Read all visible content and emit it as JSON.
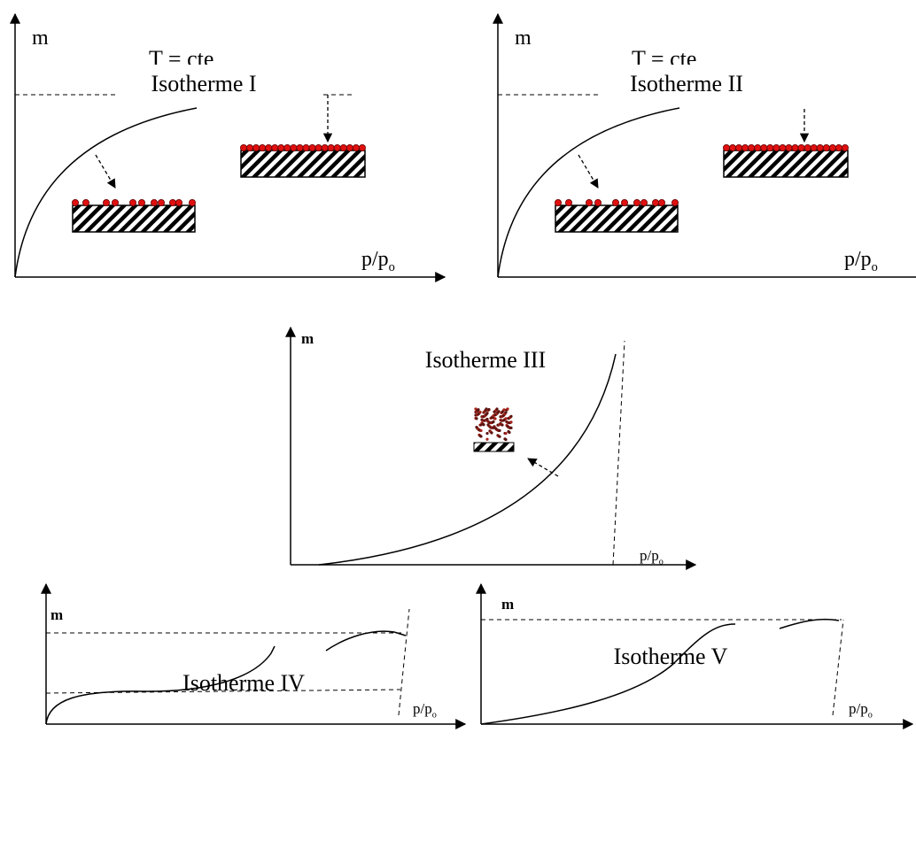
{
  "panels": [
    {
      "title": "Isotherme I",
      "note": "T = cte",
      "y_label": "m",
      "x_label": "p/p",
      "x_label_sub": "o"
    },
    {
      "title": "Isotherme II",
      "note": "T = cte",
      "y_label": "m",
      "x_label": "p/p",
      "x_label_sub": "o"
    },
    {
      "title": "Isotherme III",
      "y_label": "m",
      "x_label": "p/p",
      "x_label_sub": "o"
    },
    {
      "title": "Isotherme IV",
      "y_label": "m",
      "x_label": "p/p",
      "x_label_sub": "o"
    },
    {
      "title": "Isotherme V",
      "y_label": "m",
      "x_label": "p/p",
      "x_label_sub": "o"
    }
  ]
}
